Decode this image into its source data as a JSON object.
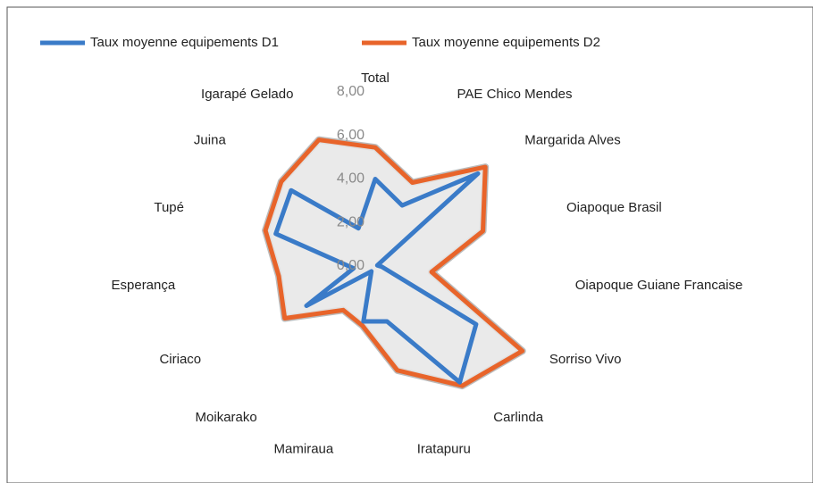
{
  "chart_data": {
    "type": "radar",
    "categories": [
      "Total",
      "PAE Chico Mendes",
      "Margarida Alves",
      "Oiapoque Brasil",
      "Oiapoque Guiane Francaise",
      "Sorriso Vivo",
      "Carlinda",
      "Iratapuru",
      "Mamiraua",
      "Moikarako",
      "Ciriaco",
      "Esperança",
      "Tupé",
      "Juina",
      "Igarapé Gelado"
    ],
    "series": [
      {
        "name": "Taux moyenne equipements D1",
        "color": "#3a7bc8",
        "values": [
          4.0,
          3.05,
          6.35,
          0.1,
          0.3,
          5.35,
          6.6,
          2.6,
          2.6,
          0.3,
          3.65,
          1.0,
          4.8,
          5.2,
          1.9
        ]
      },
      {
        "name": "Taux moyenne equipements D2",
        "color": "#e8642a",
        "values": [
          5.45,
          4.2,
          6.8,
          5.2,
          2.6,
          7.8,
          6.8,
          4.9,
          2.8,
          2.5,
          4.8,
          4.45,
          5.3,
          5.8,
          6.35
        ]
      }
    ],
    "ylim": [
      0,
      8
    ],
    "yticks": [
      {
        "value": 0,
        "label": "0,00"
      },
      {
        "value": 2,
        "label": "2,00"
      },
      {
        "value": 4,
        "label": "4,00"
      },
      {
        "value": 6,
        "label": "6,00"
      },
      {
        "value": 8,
        "label": "8,00"
      }
    ],
    "legend": "top"
  }
}
